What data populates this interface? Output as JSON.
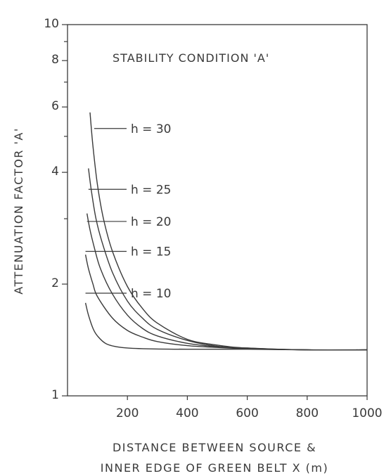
{
  "chart_data": {
    "type": "line",
    "title": "STABILITY CONDITION 'A'",
    "xlabel_line1": "DISTANCE BETWEEN SOURCE &",
    "xlabel_line2": "INNER EDGE OF GREEN BELT X (m)",
    "ylabel": "ATTENUATION FACTOR 'A'",
    "y_scale": "log",
    "xlim": [
      0,
      1000
    ],
    "ylim": [
      1,
      10
    ],
    "x_ticks": [
      {
        "value": 200,
        "label": "200"
      },
      {
        "value": 400,
        "label": "400"
      },
      {
        "value": 600,
        "label": "600"
      },
      {
        "value": 800,
        "label": "800"
      },
      {
        "value": 1000,
        "label": "1000"
      }
    ],
    "y_ticks": [
      {
        "value": 1,
        "label": "1"
      },
      {
        "value": 2,
        "label": "2"
      },
      {
        "value": 4,
        "label": "4"
      },
      {
        "value": 6,
        "label": "6"
      },
      {
        "value": 8,
        "label": "8"
      },
      {
        "value": 10,
        "label": "10"
      }
    ],
    "y_minor_ticks": [
      9,
      7,
      5,
      3
    ],
    "series": [
      {
        "name": "h = 30",
        "label_y": 5.25,
        "points": [
          [
            75,
            5.8
          ],
          [
            85,
            4.7
          ],
          [
            100,
            3.7
          ],
          [
            120,
            3.0
          ],
          [
            150,
            2.45
          ],
          [
            200,
            1.97
          ],
          [
            250,
            1.72
          ],
          [
            300,
            1.57
          ],
          [
            400,
            1.42
          ],
          [
            500,
            1.37
          ],
          [
            600,
            1.345
          ],
          [
            800,
            1.33
          ],
          [
            1000,
            1.33
          ]
        ]
      },
      {
        "name": "h = 25",
        "label_y": 3.6,
        "points": [
          [
            70,
            4.1
          ],
          [
            80,
            3.55
          ],
          [
            95,
            3.0
          ],
          [
            115,
            2.6
          ],
          [
            150,
            2.15
          ],
          [
            200,
            1.8
          ],
          [
            250,
            1.62
          ],
          [
            300,
            1.51
          ],
          [
            400,
            1.41
          ],
          [
            500,
            1.36
          ],
          [
            600,
            1.345
          ],
          [
            800,
            1.33
          ],
          [
            1000,
            1.33
          ]
        ]
      },
      {
        "name": "h = 20",
        "label_y": 2.95,
        "points": [
          [
            65,
            3.1
          ],
          [
            75,
            2.8
          ],
          [
            90,
            2.5
          ],
          [
            110,
            2.2
          ],
          [
            150,
            1.88
          ],
          [
            200,
            1.65
          ],
          [
            250,
            1.52
          ],
          [
            300,
            1.45
          ],
          [
            400,
            1.385
          ],
          [
            500,
            1.355
          ],
          [
            600,
            1.34
          ],
          [
            800,
            1.33
          ],
          [
            1000,
            1.33
          ]
        ]
      },
      {
        "name": "h = 15",
        "label_y": 2.45,
        "points": [
          [
            60,
            2.4
          ],
          [
            70,
            2.2
          ],
          [
            85,
            2.0
          ],
          [
            100,
            1.85
          ],
          [
            150,
            1.62
          ],
          [
            200,
            1.5
          ],
          [
            250,
            1.44
          ],
          [
            300,
            1.4
          ],
          [
            400,
            1.365
          ],
          [
            500,
            1.35
          ],
          [
            600,
            1.34
          ],
          [
            800,
            1.33
          ],
          [
            1000,
            1.33
          ]
        ]
      },
      {
        "name": "h = 10",
        "label_y": 1.89,
        "points": [
          [
            60,
            1.78
          ],
          [
            70,
            1.65
          ],
          [
            85,
            1.52
          ],
          [
            100,
            1.45
          ],
          [
            130,
            1.38
          ],
          [
            180,
            1.35
          ],
          [
            250,
            1.34
          ],
          [
            400,
            1.335
          ],
          [
            600,
            1.335
          ],
          [
            800,
            1.33
          ],
          [
            1000,
            1.33
          ]
        ]
      }
    ]
  }
}
